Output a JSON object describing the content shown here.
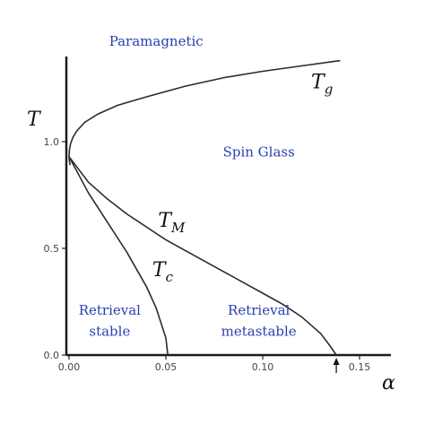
{
  "chart_data": {
    "type": "line",
    "title": "",
    "xlabel": "α",
    "ylabel": "T",
    "xlim": [
      0,
      0.165
    ],
    "ylim": [
      0,
      1.4
    ],
    "x_ticks": [
      {
        "value": 0.0,
        "label": "0.00"
      },
      {
        "value": 0.05,
        "label": "0.05"
      },
      {
        "value": 0.1,
        "label": "0.10"
      },
      {
        "value": 0.15,
        "label": "0.15"
      }
    ],
    "y_ticks": [
      {
        "value": 0.0,
        "label": "0.0"
      },
      {
        "value": 0.5,
        "label": "0.5"
      },
      {
        "value": 1.0,
        "label": "1.0"
      }
    ],
    "grid": false,
    "series": [
      {
        "name": "T_g",
        "label_main": "T",
        "label_sub": "g",
        "label_pos": [
          0.125,
          1.25
        ],
        "x": [
          0.0,
          0.0002,
          0.0008,
          0.002,
          0.004,
          0.008,
          0.015,
          0.025,
          0.04,
          0.06,
          0.08,
          0.1,
          0.12,
          0.14
        ],
        "y": [
          0.93,
          0.96,
          0.99,
          1.02,
          1.05,
          1.09,
          1.13,
          1.17,
          1.21,
          1.26,
          1.3,
          1.33,
          1.355,
          1.38
        ]
      },
      {
        "name": "T_g lower branch",
        "x": [
          0.0,
          0.0002,
          0.0006
        ],
        "y": [
          0.93,
          0.91,
          0.89
        ]
      },
      {
        "name": "T_M",
        "label_main": "T",
        "label_sub": "M",
        "label_pos": [
          0.046,
          0.6
        ],
        "x": [
          0.0,
          0.01,
          0.02,
          0.03,
          0.04,
          0.05,
          0.06,
          0.07,
          0.08,
          0.09,
          0.1,
          0.11,
          0.12,
          0.13,
          0.135,
          0.138
        ],
        "y": [
          0.93,
          0.81,
          0.73,
          0.66,
          0.6,
          0.54,
          0.49,
          0.44,
          0.39,
          0.34,
          0.29,
          0.24,
          0.18,
          0.1,
          0.04,
          0.0
        ]
      },
      {
        "name": "T_c",
        "label_main": "T",
        "label_sub": "c",
        "label_pos": [
          0.043,
          0.37
        ],
        "x": [
          0.0,
          0.01,
          0.02,
          0.03,
          0.04,
          0.045,
          0.05,
          0.051
        ],
        "y": [
          0.93,
          0.76,
          0.62,
          0.48,
          0.32,
          0.22,
          0.08,
          0.0
        ]
      }
    ],
    "region_labels": [
      {
        "text": "Paramagnetic",
        "pos": [
          0.045,
          1.45
        ]
      },
      {
        "text": "Spin Glass",
        "pos": [
          0.098,
          0.93
        ]
      },
      {
        "text": "Retrieval",
        "pos": [
          0.021,
          0.19
        ]
      },
      {
        "text": "stable",
        "pos": [
          0.021,
          0.09
        ]
      },
      {
        "text": "Retrieval",
        "pos": [
          0.098,
          0.19
        ]
      },
      {
        "text": "metastable",
        "pos": [
          0.098,
          0.09
        ]
      }
    ],
    "marker": {
      "type": "arrow",
      "x": 0.138
    }
  }
}
